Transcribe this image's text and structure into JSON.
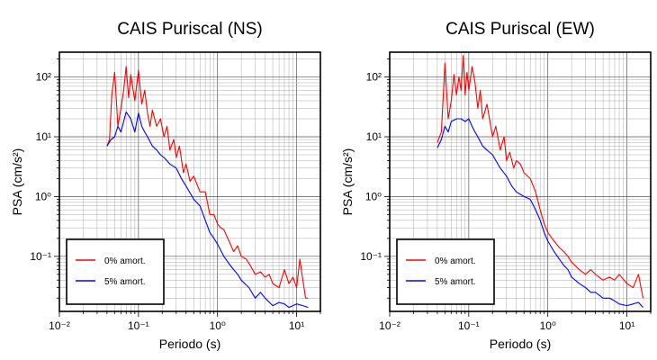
{
  "chart_data": [
    {
      "type": "line",
      "title": "CAIS Puriscal (NS)",
      "xlabel": "Periodo (s)",
      "ylabel": "PSA (cm/s²)",
      "xscale": "log",
      "yscale": "log",
      "xlim": [
        0.01,
        20
      ],
      "ylim": [
        0.012,
        260
      ],
      "grid": true,
      "legend_position": "bottom-left",
      "x_ticks": [
        "10⁻²",
        "10⁻¹",
        "10⁰",
        "10¹"
      ],
      "y_ticks": [
        "10⁻¹",
        "10⁰",
        "10¹",
        "10²"
      ],
      "series": [
        {
          "name": "0% amort.",
          "color": "#ff0000",
          "x": [
            0.04,
            0.043,
            0.046,
            0.05,
            0.055,
            0.06,
            0.065,
            0.07,
            0.075,
            0.08,
            0.09,
            0.1,
            0.11,
            0.12,
            0.13,
            0.14,
            0.15,
            0.17,
            0.19,
            0.21,
            0.23,
            0.25,
            0.28,
            0.3,
            0.33,
            0.37,
            0.4,
            0.45,
            0.5,
            0.6,
            0.7,
            0.8,
            0.9,
            1.0,
            1.1,
            1.2,
            1.4,
            1.6,
            1.8,
            2.0,
            2.3,
            2.6,
            3.0,
            3.5,
            4.0,
            4.5,
            5.0,
            6.0,
            7.0,
            8.0,
            9.0,
            10.0,
            11.0,
            12.0,
            13.0,
            14.0
          ],
          "y": [
            7,
            9,
            50,
            120,
            15,
            30,
            60,
            150,
            45,
            110,
            40,
            130,
            35,
            60,
            25,
            15,
            28,
            15,
            20,
            10,
            15,
            6,
            9,
            4.5,
            7,
            2.5,
            3.5,
            1.8,
            2.2,
            1.2,
            1.2,
            0.5,
            0.5,
            0.35,
            0.3,
            0.28,
            0.18,
            0.12,
            0.15,
            0.1,
            0.09,
            0.07,
            0.05,
            0.055,
            0.045,
            0.05,
            0.035,
            0.03,
            0.06,
            0.035,
            0.045,
            0.03,
            0.09,
            0.04,
            0.02,
            0.02
          ]
        },
        {
          "name": "5% amort.",
          "color": "#0000ff",
          "x": [
            0.04,
            0.045,
            0.05,
            0.055,
            0.06,
            0.065,
            0.07,
            0.08,
            0.09,
            0.1,
            0.11,
            0.12,
            0.13,
            0.15,
            0.17,
            0.19,
            0.21,
            0.25,
            0.3,
            0.35,
            0.4,
            0.5,
            0.6,
            0.7,
            0.8,
            0.9,
            1.0,
            1.2,
            1.4,
            1.6,
            1.8,
            2.0,
            2.5,
            3.0,
            3.5,
            4.0,
            5.0,
            6.0,
            7.0,
            8.0,
            10.0,
            12.0,
            14.0
          ],
          "y": [
            7,
            9,
            10,
            15,
            12,
            18,
            26,
            20,
            12,
            25,
            15,
            12,
            10,
            7,
            6,
            5,
            4.5,
            3.5,
            3,
            2,
            1.5,
            0.9,
            0.7,
            0.4,
            0.25,
            0.2,
            0.16,
            0.1,
            0.075,
            0.06,
            0.05,
            0.04,
            0.03,
            0.02,
            0.025,
            0.02,
            0.015,
            0.017,
            0.016,
            0.014,
            0.016,
            0.015,
            0.014
          ]
        }
      ]
    },
    {
      "type": "line",
      "title": "CAIS Puriscal (EW)",
      "xlabel": "Periodo (s)",
      "ylabel": "PSA (cm/s²)",
      "xscale": "log",
      "yscale": "log",
      "xlim": [
        0.01,
        20
      ],
      "ylim": [
        0.012,
        260
      ],
      "grid": true,
      "legend_position": "bottom-left",
      "x_ticks": [
        "10⁻²",
        "10⁻¹",
        "10⁰",
        "10¹"
      ],
      "y_ticks": [
        "10⁻¹",
        "10⁰",
        "10¹",
        "10²"
      ],
      "series": [
        {
          "name": "0% amort.",
          "color": "#ff0000",
          "x": [
            0.04,
            0.045,
            0.05,
            0.055,
            0.06,
            0.065,
            0.07,
            0.075,
            0.08,
            0.085,
            0.09,
            0.095,
            0.1,
            0.11,
            0.12,
            0.13,
            0.14,
            0.15,
            0.17,
            0.2,
            0.22,
            0.25,
            0.28,
            0.3,
            0.33,
            0.37,
            0.4,
            0.45,
            0.5,
            0.6,
            0.7,
            0.8,
            0.9,
            1.0,
            1.2,
            1.4,
            1.6,
            1.8,
            2.0,
            2.5,
            3.0,
            3.5,
            4.0,
            5.0,
            6.0,
            7.0,
            8.0,
            10.0,
            12.0,
            14.0,
            16.0
          ],
          "y": [
            8,
            12,
            170,
            20,
            40,
            110,
            50,
            100,
            60,
            230,
            50,
            120,
            60,
            150,
            80,
            30,
            60,
            20,
            35,
            10,
            15,
            6,
            10,
            4,
            5.5,
            3,
            4,
            3.5,
            2.5,
            2,
            1.2,
            0.6,
            0.35,
            0.25,
            0.18,
            0.14,
            0.12,
            0.1,
            0.08,
            0.06,
            0.05,
            0.06,
            0.05,
            0.04,
            0.045,
            0.04,
            0.05,
            0.035,
            0.03,
            0.05,
            0.02
          ]
        },
        {
          "name": "5% amort.",
          "color": "#0000ff",
          "x": [
            0.04,
            0.045,
            0.05,
            0.055,
            0.06,
            0.07,
            0.08,
            0.09,
            0.1,
            0.11,
            0.12,
            0.13,
            0.15,
            0.17,
            0.2,
            0.22,
            0.25,
            0.3,
            0.35,
            0.4,
            0.5,
            0.6,
            0.7,
            0.8,
            0.9,
            1.0,
            1.2,
            1.4,
            1.6,
            1.8,
            2.0,
            2.5,
            3.0,
            3.5,
            4.0,
            5.0,
            6.0,
            7.0,
            8.0,
            10.0,
            12.0,
            14.0,
            16.0
          ],
          "y": [
            6.5,
            9,
            15,
            12,
            18,
            20,
            20,
            18,
            20,
            15,
            12,
            10,
            7,
            6,
            5,
            4,
            3,
            2.2,
            1.5,
            1.2,
            1.0,
            0.9,
            0.6,
            0.4,
            0.25,
            0.18,
            0.12,
            0.09,
            0.07,
            0.06,
            0.045,
            0.035,
            0.03,
            0.025,
            0.025,
            0.02,
            0.02,
            0.018,
            0.016,
            0.015,
            0.016,
            0.017,
            0.014
          ]
        }
      ]
    }
  ]
}
